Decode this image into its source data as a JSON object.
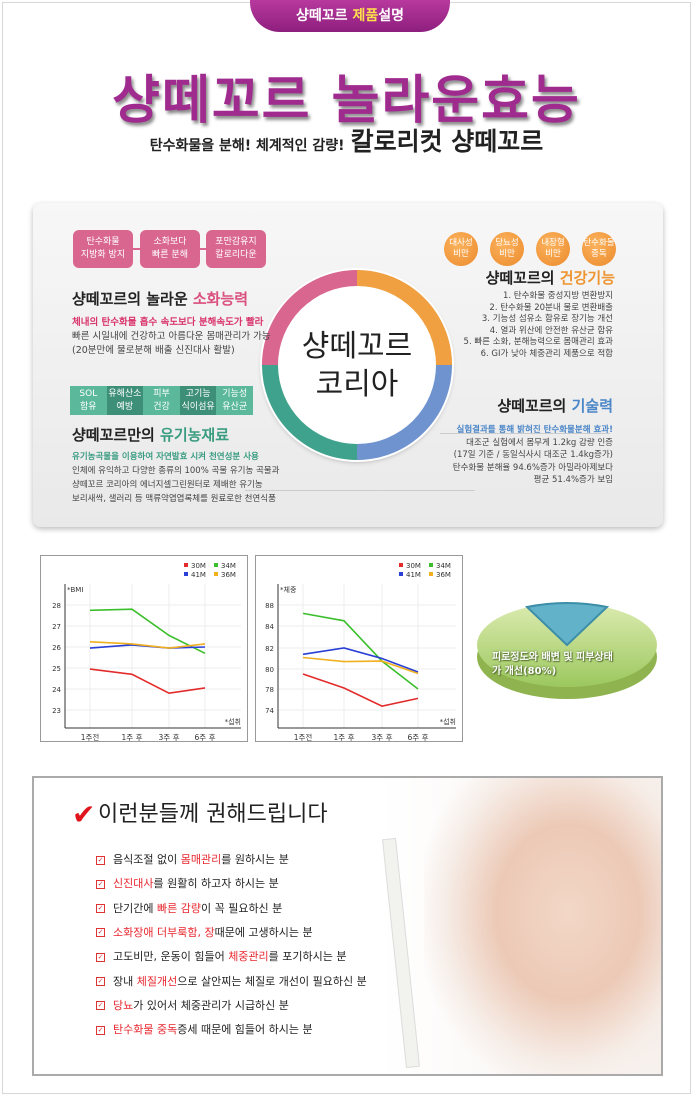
{
  "header": {
    "tab_pre": "샹떼꼬르 ",
    "tab_hl": "제품",
    "tab_post": "설명",
    "title": "샹떼꼬르 놀라운효능",
    "subtitle_small": "탄수화물을 분해! 체계적인 감량!",
    "subtitle_big": "칼로리컷 샹떼꼬르"
  },
  "panel": {
    "center": {
      "line1": "샹떼꼬르",
      "line2": "코리아"
    },
    "digestion": {
      "boxes": [
        [
          "탄수화물",
          "지방화 방지"
        ],
        [
          "소화보다",
          "빠른 분해"
        ],
        [
          "포만감유지",
          "칼로리다운"
        ]
      ],
      "title_pre": "샹떼꼬르의 놀라운 ",
      "title_hl": "소화능력",
      "lead": "체내의 탄수화물 흡수 속도보다 분해속도가 빨라",
      "lines": [
        "빠른 시일내에 건강하고 아름다운 몸매관리가 가능",
        "(20분만에 물로분해 배출 신진대사 활발)"
      ]
    },
    "organic": {
      "cells": [
        [
          "SOL",
          "함유"
        ],
        [
          "유해산소",
          "예방"
        ],
        [
          "피부",
          "건강"
        ],
        [
          "고기능",
          "식이섬유"
        ],
        [
          "기능성",
          "유산균"
        ]
      ],
      "title_pre": "샹떼꼬르만의 ",
      "title_hl": "유기농재료",
      "lead": "유기농곡물을 이용하여 자연발효 시켜 천연성분 사용",
      "lines": [
        "인체에 유익하고 다양한 종류의 100% 곡물 유기농 곡물과",
        "샹떼꼬르 코리아의 에너지셀그린원터로 제배한 유기농",
        "보리새싹, 샐러리 등 맥류약엽엽록체를 원료로한 천연식품"
      ]
    },
    "health": {
      "circles": [
        [
          "대사성",
          "비만"
        ],
        [
          "당뇨성",
          "비만"
        ],
        [
          "내장형",
          "비만"
        ],
        [
          "탄수화물",
          "중독"
        ]
      ],
      "title_pre": "샹떼꼬르의 ",
      "title_hl": "건강기능",
      "items": [
        "1. 탄수화물 중성지방 변환방지",
        "2. 탄수화물 20분내 물로 변환배출",
        "3. 기능성 섬유소 함유로 장기능 개선",
        "4. 열과 위산에 안전한 유산균 함유",
        "5. 빠른 소화, 분해능력으로 몸매관리 효과",
        "6. GI가 낮아 체중관리 제품으로 적합"
      ]
    },
    "tech": {
      "title_pre": "샹떼꼬르의 ",
      "title_hl": "기술력",
      "lead": "실험결과를 통해 밝혀진 탄수화물분해 효과!",
      "lines": [
        "대조군 실험에서 몸무게 1.2kg 감량 인증",
        "(17일 기준 / 동일식사시 대조군 1.4kg증가)",
        "탄수화물 분해율 94.6%증가 아밀라아제보다",
        "평균 51.4%증가 보임"
      ]
    }
  },
  "chart_data": [
    {
      "type": "line",
      "ylabel": "*BMI",
      "xlabel": "*섭취",
      "categories": [
        "1주전",
        "1주 후",
        "3주 후",
        "6주 후"
      ],
      "yticks": [
        23,
        24,
        25,
        26,
        27,
        28
      ],
      "ylim": [
        22.3,
        28.9
      ],
      "grid": true,
      "legend": "top-right",
      "series": [
        {
          "name": "30M",
          "color": "#e32b2b",
          "values": [
            24.95,
            24.7,
            23.8,
            24.05
          ]
        },
        {
          "name": "34M",
          "color": "#3cbf2c",
          "values": [
            27.75,
            27.8,
            26.55,
            25.7
          ]
        },
        {
          "name": "41M",
          "color": "#2a3fd6",
          "values": [
            25.95,
            26.1,
            25.95,
            26.0
          ]
        },
        {
          "name": "36M",
          "color": "#f0b020",
          "values": [
            26.25,
            26.15,
            25.95,
            26.15
          ]
        }
      ]
    },
    {
      "type": "line",
      "ylabel": "*체중",
      "xlabel": "*섭취",
      "categories": [
        "1주전",
        "1주 후",
        "3주 후",
        "6주 후"
      ],
      "yticks": [
        74,
        78,
        80,
        82,
        84,
        88
      ],
      "grid": true,
      "legend": "top-right",
      "series": [
        {
          "name": "30M",
          "color": "#e32b2b",
          "values": [
            79.5,
            78.1,
            74.75,
            76.2
          ]
        },
        {
          "name": "34M",
          "color": "#3cbf2c",
          "values": [
            86.4,
            85.0,
            80.75,
            78.0
          ]
        },
        {
          "name": "41M",
          "color": "#2a3fd6",
          "values": [
            81.4,
            82.0,
            81.0,
            79.7
          ]
        },
        {
          "name": "36M",
          "color": "#f0b020",
          "values": [
            81.1,
            80.7,
            80.75,
            79.55
          ]
        }
      ]
    },
    {
      "type": "pie",
      "label": "피로정도와 배변 및 피부상태가 개선(80%)",
      "values": [
        80,
        20
      ],
      "colors": [
        "#b5d67a",
        "#5fb0c8"
      ]
    }
  ],
  "recommend": {
    "title": "이런분들께 권해드립니다",
    "items": [
      {
        "pre": "음식조절 없이 ",
        "hl": "몸매관리",
        "post": "를 원하시는 분"
      },
      {
        "pre": "",
        "hl": "신진대사",
        "post": "를 원활히 하고자 하시는 분"
      },
      {
        "pre": "단기간에 ",
        "hl": "빠른 감량",
        "post": "이 꼭 필요하신 분"
      },
      {
        "pre": "",
        "hl": "소화장애 더부룩함, 장",
        "post": "때문에 고생하시는 분"
      },
      {
        "pre": "고도비만, 운동이 힘들어 ",
        "hl": "체중관리",
        "post": "를 포기하시는 분"
      },
      {
        "pre": "장내 ",
        "hl": "체질개선",
        "post": "으로 살안찌는 체질로 개선이 필요하신 분"
      },
      {
        "pre": "",
        "hl": "당뇨",
        "post": "가 있어서 체중관리가 시급하신 분"
      },
      {
        "pre": "",
        "hl": "탄수화물 중독",
        "post": "증세 때문에 힘들어 하시는 분"
      }
    ]
  }
}
